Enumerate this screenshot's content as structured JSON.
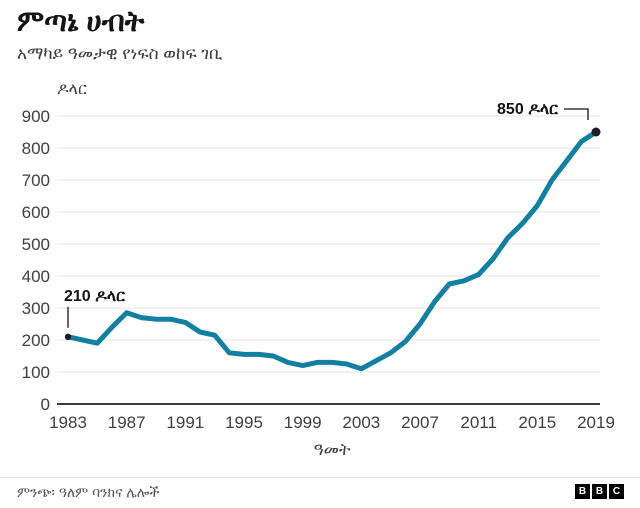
{
  "header": {
    "title": "ምጣኔ ሀብት",
    "subtitle": "አማካይ ዓመታዊ የነፍስ ወከፍ ገቢ"
  },
  "footer": {
    "source": "ምንጭ፡ ዓለም ባንክና ሌሎች",
    "logo_letters": [
      "B",
      "B",
      "C"
    ]
  },
  "chart_data": {
    "type": "line",
    "title": "ምጣኔ ሀብት",
    "subtitle": "አማካይ ዓመታዊ የነፍስ ወከፍ ገቢ",
    "unit_label": "ዶላር",
    "xlabel": "ዓመት",
    "ylabel": "ዶላር",
    "ylim": [
      0,
      900
    ],
    "y_ticks": [
      0,
      100,
      200,
      300,
      400,
      500,
      600,
      700,
      800,
      900
    ],
    "x_ticks": [
      1983,
      1987,
      1991,
      1995,
      1999,
      2003,
      2007,
      2011,
      2015,
      2019
    ],
    "x": [
      1983,
      1984,
      1985,
      1986,
      1987,
      1988,
      1989,
      1990,
      1991,
      1992,
      1993,
      1994,
      1995,
      1996,
      1997,
      1998,
      1999,
      2000,
      2001,
      2002,
      2003,
      2004,
      2005,
      2006,
      2007,
      2008,
      2009,
      2010,
      2011,
      2012,
      2013,
      2014,
      2015,
      2016,
      2017,
      2018,
      2019
    ],
    "values": [
      210,
      200,
      190,
      240,
      285,
      270,
      265,
      265,
      255,
      225,
      215,
      160,
      155,
      155,
      150,
      130,
      120,
      130,
      130,
      125,
      110,
      135,
      160,
      195,
      250,
      320,
      375,
      385,
      405,
      455,
      520,
      565,
      620,
      700,
      760,
      820,
      850
    ],
    "annotations": [
      {
        "label": "210 ዶላር",
        "x": 1983,
        "value": 210,
        "placement": "above"
      },
      {
        "label": "850 ዶላር",
        "x": 2019,
        "value": 850,
        "placement": "left"
      }
    ],
    "grid": true,
    "legend": "none",
    "colors": {
      "line": "#1380A1",
      "grid": "#e6e6e6",
      "axis": "#3b3b3b",
      "tick_text": "#404040",
      "annotation": "#141414",
      "marker": "#1d1d26"
    }
  }
}
